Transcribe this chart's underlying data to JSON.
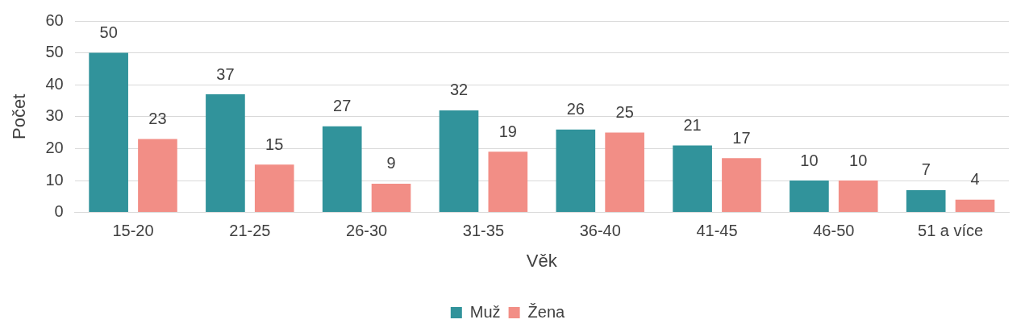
{
  "chart_data": {
    "type": "bar",
    "xlabel": "Věk",
    "ylabel": "Počet",
    "categories": [
      "15-20",
      "21-25",
      "26-30",
      "31-35",
      "36-40",
      "41-45",
      "46-50",
      "51 a více"
    ],
    "series": [
      {
        "name": "Muž",
        "color": "#31939b",
        "values": [
          50,
          37,
          27,
          32,
          26,
          21,
          10,
          7
        ]
      },
      {
        "name": "Žena",
        "color": "#f28e86",
        "values": [
          23,
          15,
          9,
          19,
          25,
          17,
          10,
          4
        ]
      }
    ],
    "ylim": [
      0,
      60
    ],
    "yticks": [
      0,
      10,
      20,
      30,
      40,
      50,
      60
    ],
    "grid": "y",
    "legend": "bottom",
    "data_labels": true
  }
}
